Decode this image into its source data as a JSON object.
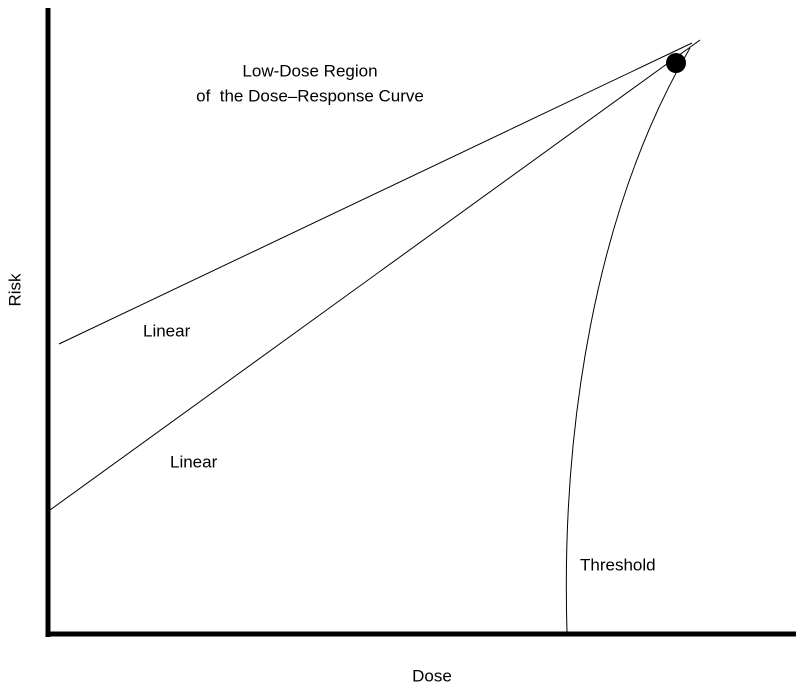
{
  "diagram": {
    "title": [
      "Low-Dose Region",
      "of  the Dose–Response Curve"
    ],
    "x_axis_label": "Dose",
    "y_axis_label": "Risk",
    "curves": [
      {
        "label": "Linear"
      },
      {
        "label": "Linear"
      },
      {
        "label": "Threshold"
      }
    ]
  }
}
